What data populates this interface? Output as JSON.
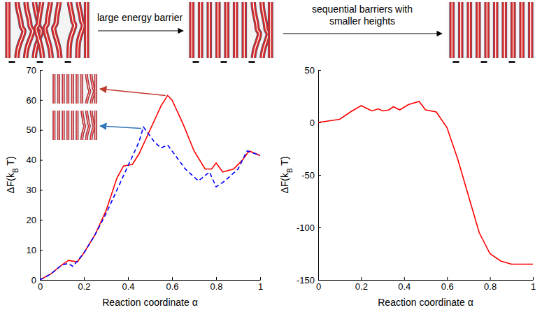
{
  "chart_data": [
    {
      "type": "line",
      "xlabel": "Reaction coordinate α",
      "ylabel": [
        "ΔF(k",
        "B",
        " T)"
      ],
      "xlim": [
        0,
        1
      ],
      "ylim": [
        0,
        70
      ],
      "xticks": [
        0,
        0.2,
        0.4,
        0.6,
        0.8,
        1
      ],
      "yticks": [
        0,
        10,
        20,
        30,
        40,
        50,
        60,
        70
      ],
      "series": [
        {
          "color": "#ff0000",
          "line_style": "solid",
          "x": [
            0,
            0.05,
            0.1,
            0.13,
            0.17,
            0.2,
            0.25,
            0.3,
            0.35,
            0.38,
            0.42,
            0.45,
            0.5,
            0.55,
            0.58,
            0.6,
            0.65,
            0.7,
            0.75,
            0.78,
            0.8,
            0.83,
            0.88,
            0.92,
            0.95,
            1
          ],
          "values": [
            0,
            2,
            5,
            6.5,
            6,
            9,
            15,
            23,
            34,
            38,
            38.5,
            42,
            50,
            58,
            61.5,
            60,
            52,
            43,
            37,
            37,
            39,
            36,
            37,
            40,
            43,
            41.5
          ]
        },
        {
          "color": "#0000ff",
          "line_style": "dashed",
          "x": [
            0,
            0.05,
            0.1,
            0.13,
            0.15,
            0.2,
            0.25,
            0.3,
            0.35,
            0.4,
            0.45,
            0.47,
            0.52,
            0.55,
            0.58,
            0.62,
            0.66,
            0.72,
            0.77,
            0.8,
            0.84,
            0.9,
            0.94,
            1
          ],
          "values": [
            0,
            2,
            5,
            5.5,
            4.5,
            9,
            15,
            22,
            30,
            38,
            46,
            51,
            46,
            44,
            45,
            41,
            37,
            33,
            36,
            31,
            33,
            37,
            43,
            41.5
          ]
        }
      ]
    },
    {
      "type": "line",
      "xlabel": "Reaction coordinate α",
      "ylabel": [
        "ΔF(k",
        "B",
        " T)"
      ],
      "xlim": [
        0,
        1
      ],
      "ylim": [
        -150,
        50
      ],
      "xticks": [
        0,
        0.2,
        0.4,
        0.6,
        0.8,
        1
      ],
      "yticks": [
        -150,
        -100,
        -50,
        0,
        50
      ],
      "series": [
        {
          "color": "#ff0000",
          "line_style": "solid",
          "x": [
            0,
            0.1,
            0.15,
            0.2,
            0.25,
            0.28,
            0.3,
            0.33,
            0.35,
            0.38,
            0.42,
            0.47,
            0.5,
            0.55,
            0.6,
            0.65,
            0.7,
            0.75,
            0.8,
            0.85,
            0.9,
            1
          ],
          "values": [
            0,
            3,
            10,
            16,
            11,
            13,
            11,
            12,
            15,
            12,
            17,
            20,
            12,
            10,
            -5,
            -35,
            -70,
            -105,
            -125,
            -132,
            -135,
            -135
          ]
        }
      ]
    }
  ],
  "annotations": [
    "large energy barrier",
    "sequential barriers with smaller heights"
  ]
}
